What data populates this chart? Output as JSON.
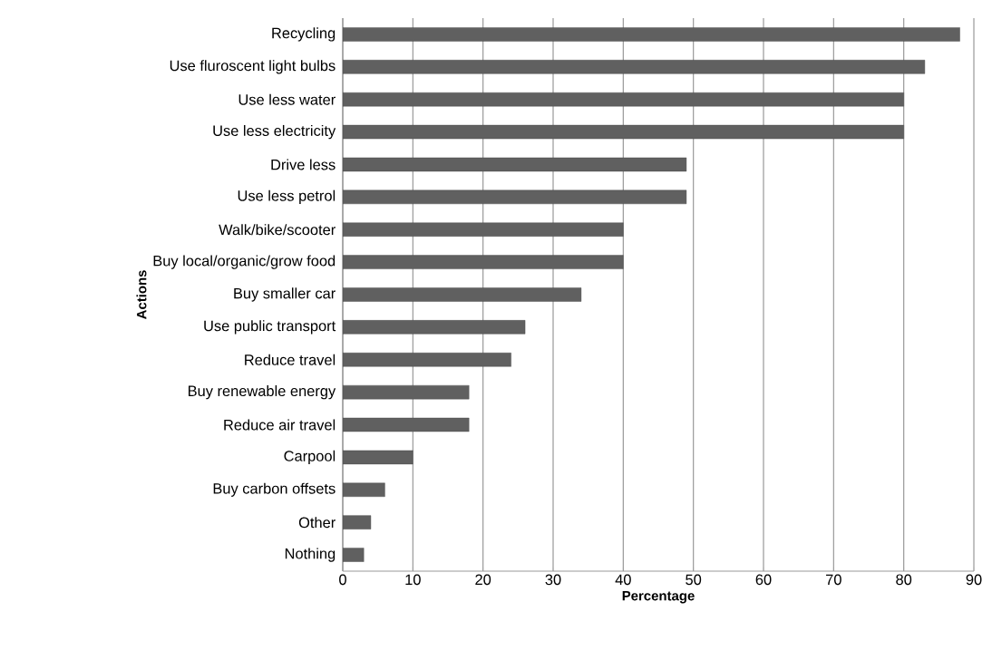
{
  "chart_data": {
    "type": "bar",
    "orientation": "horizontal",
    "categories": [
      "Recycling",
      "Use fluroscent light bulbs",
      "Use less water",
      "Use less electricity",
      "Drive less",
      "Use less petrol",
      "Walk/bike/scooter",
      "Buy local/organic/grow food",
      "Buy smaller car",
      "Use public transport",
      "Reduce travel",
      "Buy renewable energy",
      "Reduce air travel",
      "Carpool",
      "Buy carbon offsets",
      "Other",
      "Nothing"
    ],
    "values": [
      88,
      83,
      80,
      80,
      49,
      49,
      40,
      40,
      34,
      26,
      24,
      18,
      18,
      10,
      6,
      4,
      3
    ],
    "color": "#606060",
    "xlabel": "Percentage",
    "ylabel": "Actions",
    "xlim": [
      0,
      90
    ],
    "xticks": [
      0,
      10,
      20,
      30,
      40,
      50,
      60,
      70,
      80,
      90
    ],
    "grid": "x"
  }
}
